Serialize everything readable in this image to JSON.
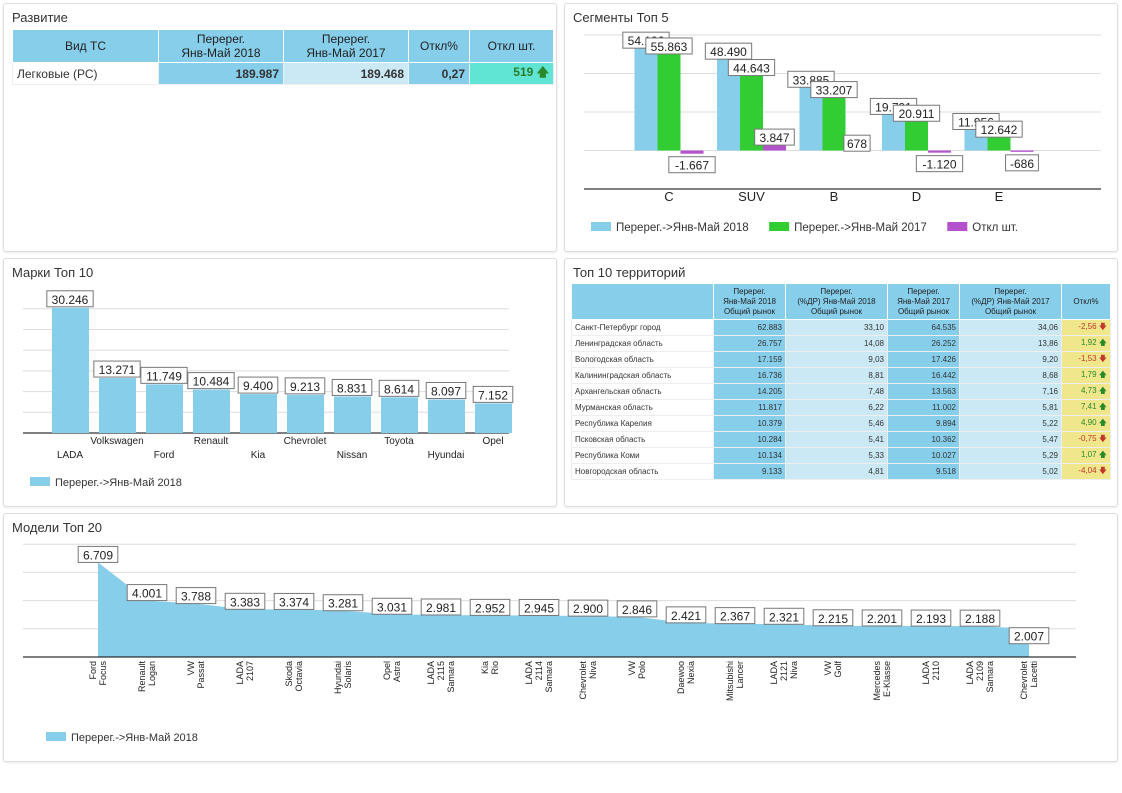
{
  "dev": {
    "title": "Развитие",
    "headers": [
      "Вид ТС",
      "Перерег.\nЯнв-Май 2018",
      "Перерег.\nЯнв-Май 2017",
      "Откл%",
      "Откл шт."
    ],
    "row": {
      "name": "Легковые (РС)",
      "v2018": "189.987",
      "v2017": "189.468",
      "pct": "0,27",
      "diff": "519",
      "trend": "up"
    }
  },
  "segments": {
    "title": "Сегменты Топ 5"
  },
  "brands": {
    "title": "Марки Топ 10"
  },
  "territories": {
    "title": "Топ 10 территорий",
    "headers": [
      "",
      "Перерег.\nЯнв-Май 2018\nОбщий рынок",
      "Перерег.\n(%ДР) Янв-Май 2018\nОбщий рынок",
      "Перерег.\nЯнв-Май 2017\nОбщий рынок",
      "Перерег.\n(%ДР) Янв-Май 2017\nОбщий рынок",
      "Откл%"
    ],
    "rows": [
      [
        "Санкт-Петербург город",
        "62.883",
        "33,10",
        "64.535",
        "34,06",
        "-2,56",
        "down"
      ],
      [
        "Ленинградская область",
        "26.757",
        "14,08",
        "26.252",
        "13,86",
        "1,92",
        "up"
      ],
      [
        "Вологодская область",
        "17.159",
        "9,03",
        "17.426",
        "9,20",
        "-1,53",
        "down"
      ],
      [
        "Калининградская область",
        "16.736",
        "8,81",
        "16.442",
        "8,68",
        "1,79",
        "up"
      ],
      [
        "Архангельская область",
        "14.205",
        "7,48",
        "13.563",
        "7,16",
        "4,73",
        "up"
      ],
      [
        "Мурманская область",
        "11.817",
        "6,22",
        "11.002",
        "5,81",
        "7,41",
        "up"
      ],
      [
        "Республика Карелия",
        "10.379",
        "5,46",
        "9.894",
        "5,22",
        "4,90",
        "up"
      ],
      [
        "Псковская область",
        "10.284",
        "5,41",
        "10.362",
        "5,47",
        "-0,75",
        "down"
      ],
      [
        "Республика Коми",
        "10.134",
        "5,33",
        "10.027",
        "5,29",
        "1,07",
        "up"
      ],
      [
        "Новгородская область",
        "9.133",
        "4,81",
        "9.518",
        "5,02",
        "-4,04",
        "down"
      ]
    ]
  },
  "models": {
    "title": "Модели Топ 20"
  },
  "chart_data": [
    {
      "type": "bar",
      "categories": [
        "C",
        "SUV",
        "B",
        "D",
        "E"
      ],
      "ylim": [
        -20000,
        60000
      ],
      "grid": true,
      "legend": "bottom",
      "series": [
        {
          "name": "Перерег.->Янв-Май 2018",
          "color": "#87ceeb",
          "values": [
            54196,
            48490,
            33885,
            19791,
            11956
          ],
          "labels": [
            "54.196",
            "48.490",
            "33.885",
            "19.791",
            "11.956"
          ]
        },
        {
          "name": "Перерег.->Янв-Май 2017",
          "color": "#32cd32",
          "values": [
            55863,
            44643,
            33207,
            20911,
            12642
          ],
          "labels": [
            "55.863",
            "44.643",
            "33.207",
            "20.911",
            "12.642"
          ]
        },
        {
          "name": "Откл шт.",
          "color": "#b452cd",
          "values": [
            -1667,
            3847,
            678,
            -1120,
            -686
          ],
          "labels": [
            "-1.667",
            "3.847",
            "678",
            "-1.120",
            "-686"
          ]
        }
      ]
    },
    {
      "type": "bar",
      "categories": [
        "LADA",
        "Volkswagen",
        "Ford",
        "Renault",
        "Kia",
        "Chevrolet",
        "Nissan",
        "Toyota",
        "Hyundai",
        "Opel"
      ],
      "ylim": [
        0,
        30000
      ],
      "grid": true,
      "legend": "bottom-left",
      "series": [
        {
          "name": "Перерег.->Янв-Май 2018",
          "color": "#87ceeb",
          "values": [
            30246,
            13271,
            11749,
            10484,
            9400,
            9213,
            8831,
            8614,
            8097,
            7152
          ],
          "labels": [
            "30.246",
            "13.271",
            "11.749",
            "10.484",
            "9.400",
            "9.213",
            "8.831",
            "8.614",
            "8.097",
            "7.152"
          ]
        }
      ]
    },
    {
      "type": "area",
      "categories": [
        "Ford Focus",
        "Renault Logan",
        "VW Passat",
        "LADA 2107",
        "Skoda Octavia",
        "Hyundai Solaris",
        "Opel Astra",
        "LADA 2115 Samara",
        "Kia Rio",
        "LADA 2114 Samara",
        "Chevrolet Niva",
        "VW Polo",
        "Daewoo Nexia",
        "Mitsubishi Lancer",
        "LADA 2121 Niva",
        "VW Golf",
        "Mercedes E-Klasse",
        "LADA 2110",
        "LADA 2109 Samara",
        "Chevrolet Lacetti"
      ],
      "ylim": [
        0,
        8000
      ],
      "grid": true,
      "legend": "bottom-left",
      "series": [
        {
          "name": "Перерег.->Янв-Май 2018",
          "color": "#87ceeb",
          "values": [
            6709,
            4001,
            3788,
            3383,
            3374,
            3281,
            3031,
            2981,
            2952,
            2945,
            2900,
            2846,
            2421,
            2367,
            2321,
            2215,
            2201,
            2193,
            2188,
            2007
          ],
          "labels": [
            "6.709",
            "4.001",
            "3.788",
            "3.383",
            "3.374",
            "3.281",
            "3.031",
            "2.981",
            "2.952",
            "2.945",
            "2.900",
            "2.846",
            "2.421",
            "2.367",
            "2.321",
            "2.215",
            "2.201",
            "2.193",
            "2.188",
            "2.007"
          ]
        }
      ]
    }
  ]
}
